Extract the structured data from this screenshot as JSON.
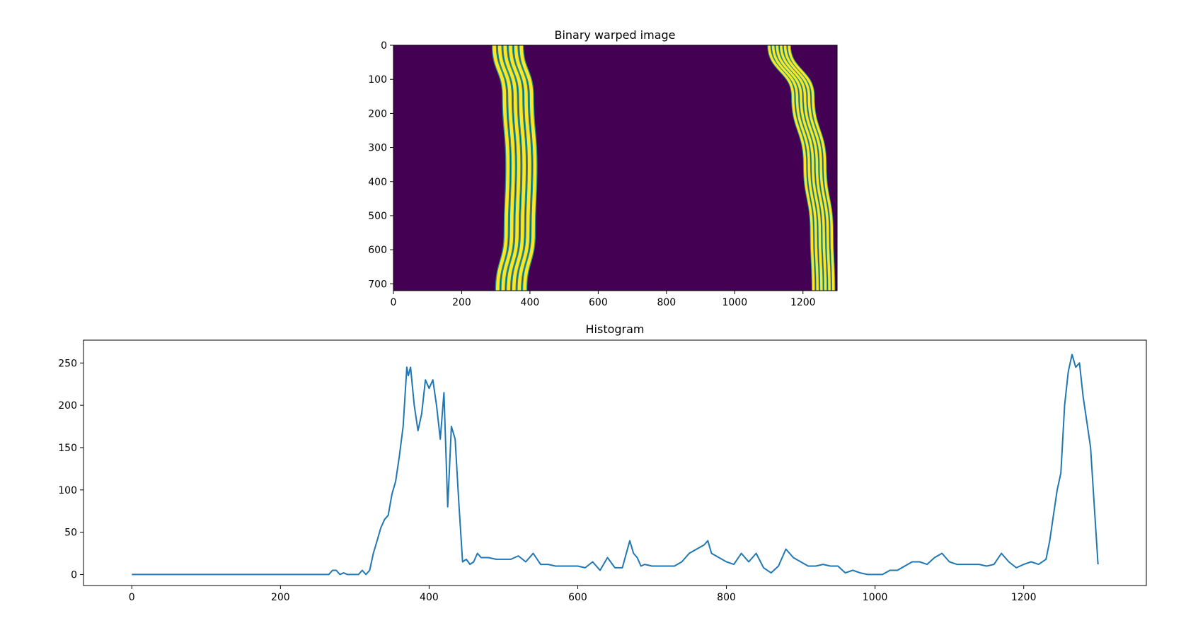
{
  "chart_data": [
    {
      "type": "heatmap",
      "title": "Binary warped image",
      "xlim": [
        0,
        1300
      ],
      "ylim": [
        720,
        0
      ],
      "xticks": [
        0,
        200,
        400,
        600,
        800,
        1000,
        1200
      ],
      "yticks": [
        0,
        100,
        200,
        300,
        400,
        500,
        600,
        700
      ],
      "colormap": {
        "low": "#440154",
        "high": "#fde725",
        "edge": "#21918c"
      },
      "lanes": [
        {
          "name": "left",
          "points": [
            [
              335,
              0
            ],
            [
              365,
              150
            ],
            [
              375,
              350
            ],
            [
              370,
              550
            ],
            [
              345,
              720
            ]
          ],
          "width": 95
        },
        {
          "name": "right",
          "points": [
            [
              1130,
              0
            ],
            [
              1200,
              150
            ],
            [
              1235,
              350
            ],
            [
              1255,
              550
            ],
            [
              1260,
              720
            ]
          ],
          "width": 70
        }
      ]
    },
    {
      "type": "line",
      "title": "Histogram",
      "xlim": [
        -65,
        1365
      ],
      "ylim": [
        -13,
        277
      ],
      "xticks": [
        0,
        200,
        400,
        600,
        800,
        1000,
        1200
      ],
      "yticks": [
        0,
        50,
        100,
        150,
        200,
        250
      ],
      "color": "#1f77b4",
      "series": [
        {
          "x": [
            0,
            100,
            200,
            265,
            270,
            275,
            280,
            285,
            290,
            295,
            300,
            305,
            310,
            315,
            320,
            325,
            330,
            335,
            340,
            345,
            350,
            355,
            360,
            365,
            370,
            372,
            375,
            380,
            385,
            390,
            395,
            400,
            405,
            410,
            415,
            420,
            425,
            430,
            435,
            440,
            445,
            450,
            455,
            460,
            465,
            470,
            480,
            490,
            500,
            510,
            520,
            530,
            540,
            550,
            560,
            570,
            580,
            590,
            600,
            610,
            620,
            630,
            640,
            650,
            660,
            670,
            675,
            680,
            685,
            690,
            700,
            710,
            720,
            730,
            740,
            750,
            760,
            770,
            775,
            780,
            790,
            800,
            810,
            820,
            830,
            840,
            850,
            860,
            870,
            880,
            890,
            900,
            910,
            920,
            930,
            940,
            950,
            960,
            970,
            980,
            990,
            1000,
            1010,
            1020,
            1030,
            1040,
            1050,
            1060,
            1070,
            1080,
            1090,
            1100,
            1110,
            1120,
            1130,
            1140,
            1150,
            1160,
            1170,
            1180,
            1190,
            1200,
            1210,
            1220,
            1230,
            1235,
            1240,
            1245,
            1250,
            1255,
            1260,
            1265,
            1270,
            1275,
            1280,
            1285,
            1290,
            1295,
            1300
          ],
          "values": [
            0,
            0,
            0,
            0,
            5,
            5,
            0,
            2,
            0,
            0,
            0,
            0,
            5,
            0,
            5,
            25,
            40,
            55,
            65,
            70,
            95,
            110,
            140,
            175,
            245,
            235,
            245,
            200,
            170,
            190,
            230,
            220,
            230,
            200,
            160,
            215,
            80,
            175,
            160,
            85,
            15,
            18,
            12,
            15,
            25,
            20,
            20,
            18,
            18,
            18,
            22,
            15,
            25,
            12,
            12,
            10,
            10,
            10,
            10,
            8,
            15,
            5,
            20,
            8,
            8,
            40,
            25,
            20,
            10,
            12,
            10,
            10,
            10,
            10,
            15,
            25,
            30,
            35,
            40,
            25,
            20,
            15,
            12,
            25,
            15,
            25,
            8,
            2,
            10,
            30,
            20,
            15,
            10,
            10,
            12,
            10,
            10,
            2,
            5,
            2,
            0,
            0,
            0,
            5,
            5,
            10,
            15,
            15,
            12,
            20,
            25,
            15,
            12,
            12,
            12,
            12,
            10,
            12,
            25,
            15,
            8,
            12,
            15,
            12,
            18,
            40,
            70,
            100,
            120,
            200,
            240,
            260,
            245,
            250,
            210,
            180,
            150,
            80,
            12
          ]
        }
      ]
    }
  ]
}
